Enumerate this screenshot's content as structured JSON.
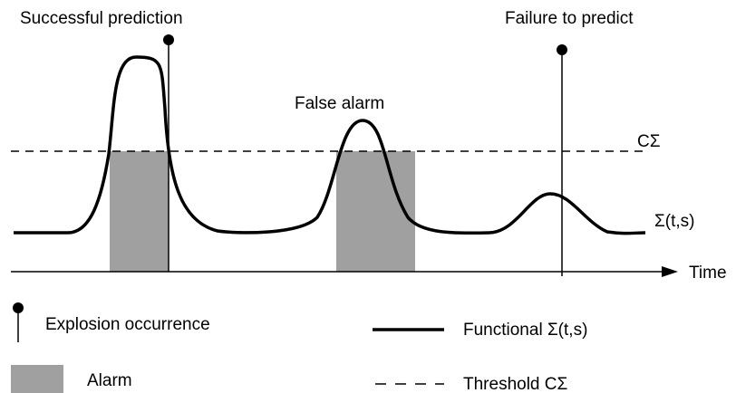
{
  "labels": {
    "successful": "Successful prediction",
    "false_alarm": "False alarm",
    "failure": "Failure to predict",
    "threshold": "CΣ",
    "functional": "Σ(t,s)",
    "time": "Time"
  },
  "legend": {
    "explosion": "Explosion occurrence",
    "functional": "Functional Σ(t,s)",
    "alarm": "Alarm",
    "threshold": "Threshold CΣ"
  }
}
